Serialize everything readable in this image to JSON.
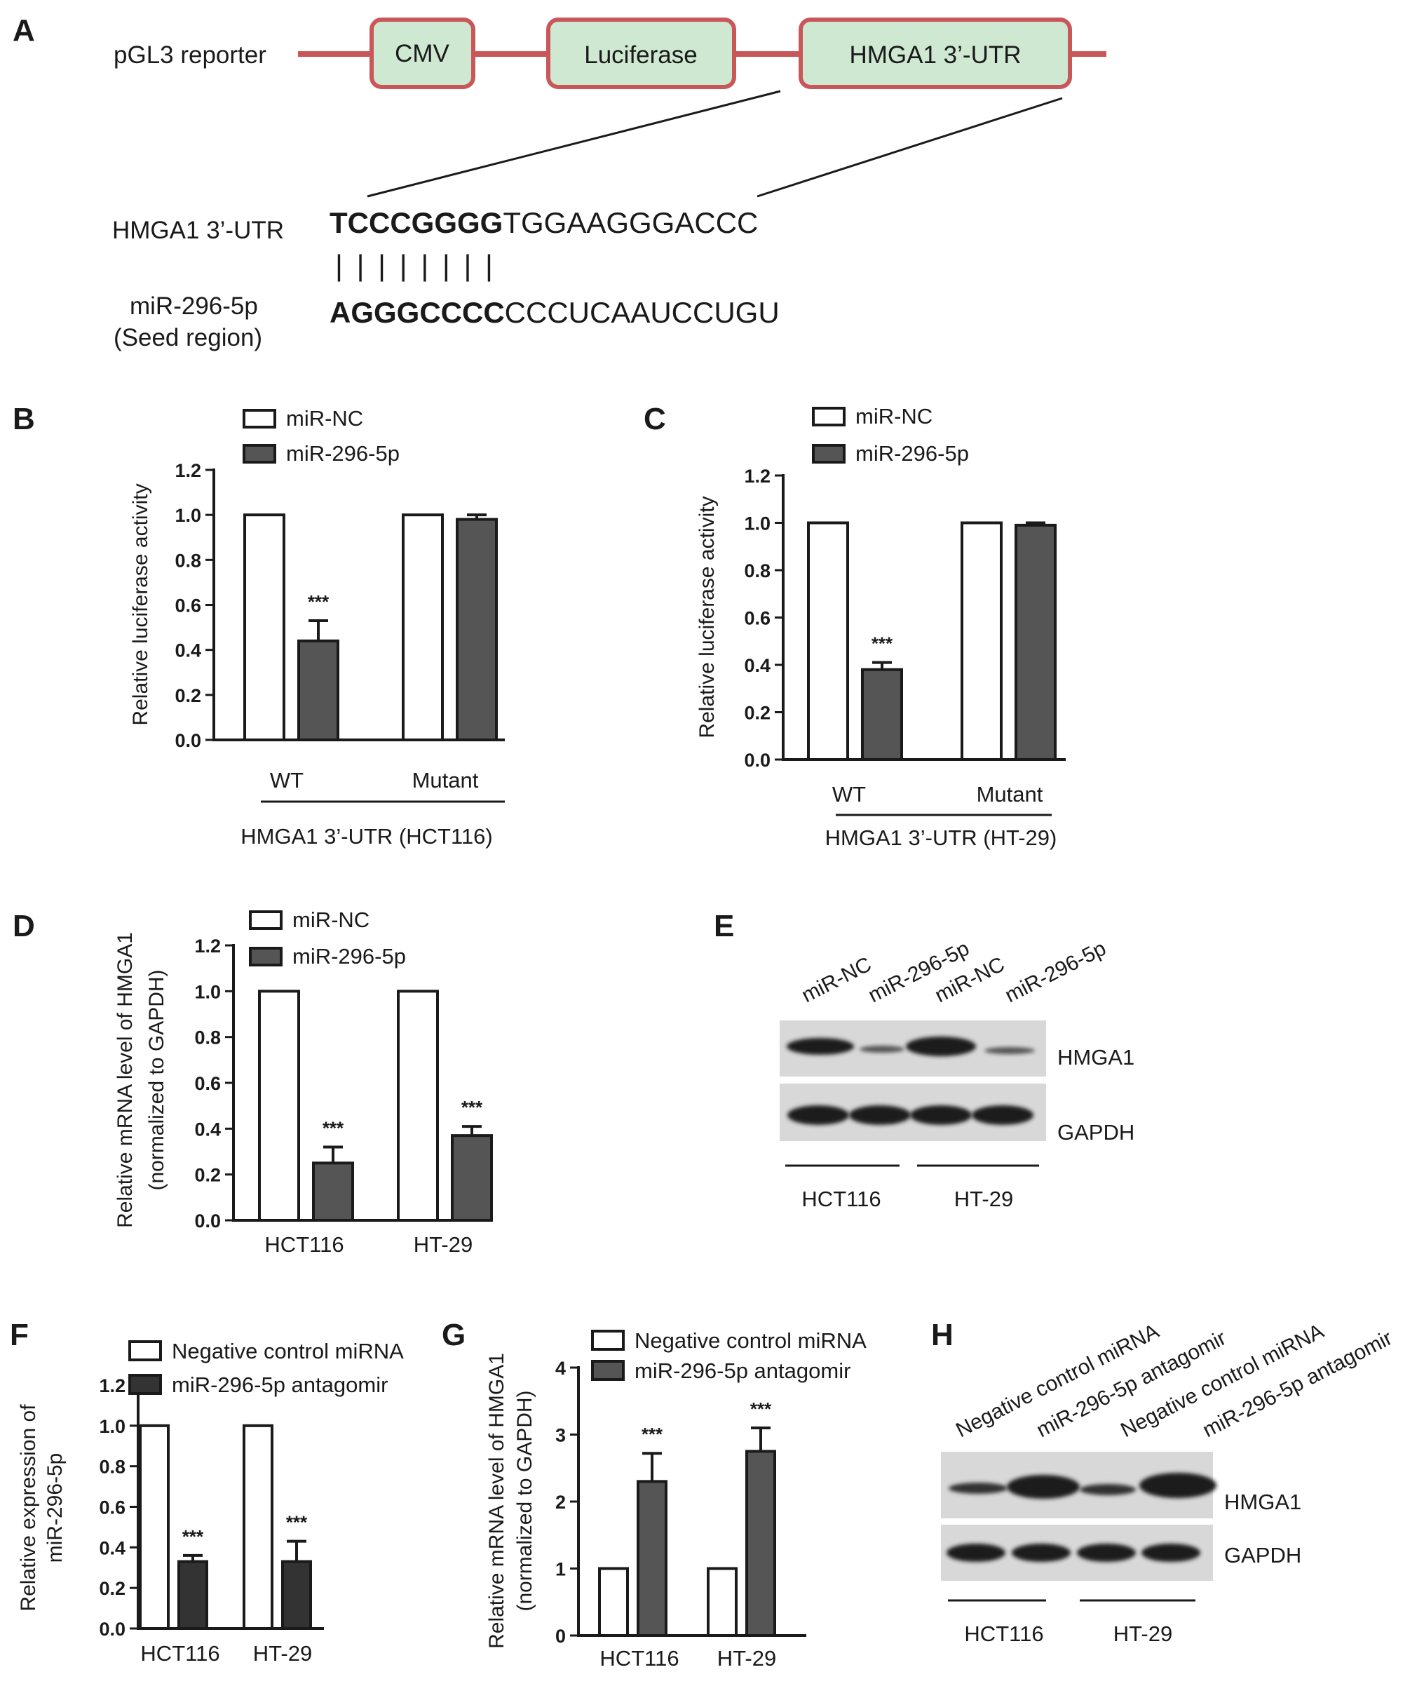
{
  "panel_labels": {
    "A": "A",
    "B": "B",
    "C": "C",
    "D": "D",
    "E": "E",
    "F": "F",
    "G": "G",
    "H": "H"
  },
  "panel_a": {
    "reporter_label": "pGL3  reporter",
    "boxes": [
      "CMV",
      "Luciferase",
      "HMGA1 3’-UTR"
    ],
    "box_fill": "#cfe8d2",
    "box_stroke": "#c9575a",
    "line_color": "#c9575a",
    "utr_label": "HMGA1 3’-UTR",
    "utr_seed": "TCCCGGGG",
    "utr_rest": "TGGAAGGGACCC",
    "pairing": "| | | | | | | |",
    "mir_label": "miR-296-5p",
    "mir_sublabel": "(Seed region)",
    "mir_seed": "AGGGCCCC",
    "mir_rest": "CCCUCAAUCCUGU"
  },
  "chart_data": [
    {
      "panel": "B",
      "type": "bar",
      "ylabel": "Relative luciferase activity",
      "ylim": [
        0,
        1.2
      ],
      "yticks": [
        "0.0",
        "0.2",
        "0.4",
        "0.6",
        "0.8",
        "1.0",
        "1.2"
      ],
      "categories": [
        "WT",
        "Mutant"
      ],
      "group_label": "HMGA1 3’-UTR (HCT116)",
      "series": [
        {
          "name": "miR-NC",
          "values": [
            1.0,
            1.0
          ],
          "errors": [
            0,
            0
          ],
          "color": "#ffffff"
        },
        {
          "name": "miR-296-5p",
          "values": [
            0.44,
            0.98
          ],
          "errors": [
            0.09,
            0.02
          ],
          "color": "#555555"
        }
      ],
      "significance": [
        {
          "category": "WT",
          "series": "miR-296-5p",
          "label": "***"
        }
      ]
    },
    {
      "panel": "C",
      "type": "bar",
      "ylabel": "Relative luciferase activity",
      "ylim": [
        0,
        1.2
      ],
      "yticks": [
        "0.0",
        "0.2",
        "0.4",
        "0.6",
        "0.8",
        "1.0",
        "1.2"
      ],
      "categories": [
        "WT",
        "Mutant"
      ],
      "group_label": "HMGA1 3’-UTR (HT-29)",
      "series": [
        {
          "name": "miR-NC",
          "values": [
            1.0,
            1.0
          ],
          "errors": [
            0,
            0
          ],
          "color": "#ffffff"
        },
        {
          "name": "miR-296-5p",
          "values": [
            0.38,
            0.99
          ],
          "errors": [
            0.03,
            0.01
          ],
          "color": "#555555"
        }
      ],
      "significance": [
        {
          "category": "WT",
          "series": "miR-296-5p",
          "label": "***"
        }
      ]
    },
    {
      "panel": "D",
      "type": "bar",
      "ylabel": "Relative mRNA level of HMGA1",
      "ylabel2": "(normalized to GAPDH)",
      "ylim": [
        0,
        1.2
      ],
      "yticks": [
        "0.0",
        "0.2",
        "0.4",
        "0.6",
        "0.8",
        "1.0",
        "1.2"
      ],
      "categories": [
        "HCT116",
        "HT-29"
      ],
      "series": [
        {
          "name": "miR-NC",
          "values": [
            1.0,
            1.0
          ],
          "errors": [
            0,
            0
          ],
          "color": "#ffffff"
        },
        {
          "name": "miR-296-5p",
          "values": [
            0.25,
            0.37
          ],
          "errors": [
            0.07,
            0.04
          ],
          "color": "#555555"
        }
      ],
      "significance": [
        {
          "category": "HCT116",
          "series": "miR-296-5p",
          "label": "***"
        },
        {
          "category": "HT-29",
          "series": "miR-296-5p",
          "label": "***"
        }
      ]
    },
    {
      "panel": "F",
      "type": "bar",
      "ylabel": "Relative expression of",
      "ylabel2": "miR-296-5p",
      "ylim": [
        0,
        1.2
      ],
      "yticks": [
        "0.0",
        "0.2",
        "0.4",
        "0.6",
        "0.8",
        "1.0",
        "1.2"
      ],
      "categories": [
        "HCT116",
        "HT-29"
      ],
      "series": [
        {
          "name": "Negative control miRNA",
          "values": [
            1.0,
            1.0
          ],
          "errors": [
            0,
            0
          ],
          "color": "#ffffff"
        },
        {
          "name": "miR-296-5p antagomir",
          "values": [
            0.33,
            0.33
          ],
          "errors": [
            0.03,
            0.1
          ],
          "color": "#333333"
        }
      ],
      "significance": [
        {
          "category": "HCT116",
          "series": "miR-296-5p antagomir",
          "label": "***"
        },
        {
          "category": "HT-29",
          "series": "miR-296-5p antagomir",
          "label": "***"
        }
      ]
    },
    {
      "panel": "G",
      "type": "bar",
      "ylabel": "Relative mRNA level of HMGA1",
      "ylabel2": "(normalized to GAPDH)",
      "ylim": [
        0,
        4
      ],
      "yticks": [
        "0",
        "1",
        "2",
        "3",
        "4"
      ],
      "categories": [
        "HCT116",
        "HT-29"
      ],
      "series": [
        {
          "name": "Negative control miRNA",
          "values": [
            1.0,
            1.0
          ],
          "errors": [
            0,
            0
          ],
          "color": "#ffffff"
        },
        {
          "name": "miR-296-5p antagomir",
          "values": [
            2.3,
            2.75
          ],
          "errors": [
            0.42,
            0.35
          ],
          "color": "#555555"
        }
      ],
      "significance": [
        {
          "category": "HCT116",
          "series": "miR-296-5p antagomir",
          "label": "***"
        },
        {
          "category": "HT-29",
          "series": "miR-296-5p antagomir",
          "label": "***"
        }
      ]
    }
  ],
  "panel_e": {
    "lanes": [
      "miR-NC",
      "miR-296-5p",
      "miR-NC",
      "miR-296-5p"
    ],
    "rows": [
      "HMGA1",
      "GAPDH"
    ],
    "groups": [
      "HCT116",
      "HT-29"
    ]
  },
  "panel_h": {
    "lanes": [
      "Negative control miRNA",
      "miR-296-5p antagomir",
      "Negative control miRNA",
      "miR-296-5p antagomir"
    ],
    "rows": [
      "HMGA1",
      "GAPDH"
    ],
    "groups": [
      "HCT116",
      "HT-29"
    ]
  }
}
